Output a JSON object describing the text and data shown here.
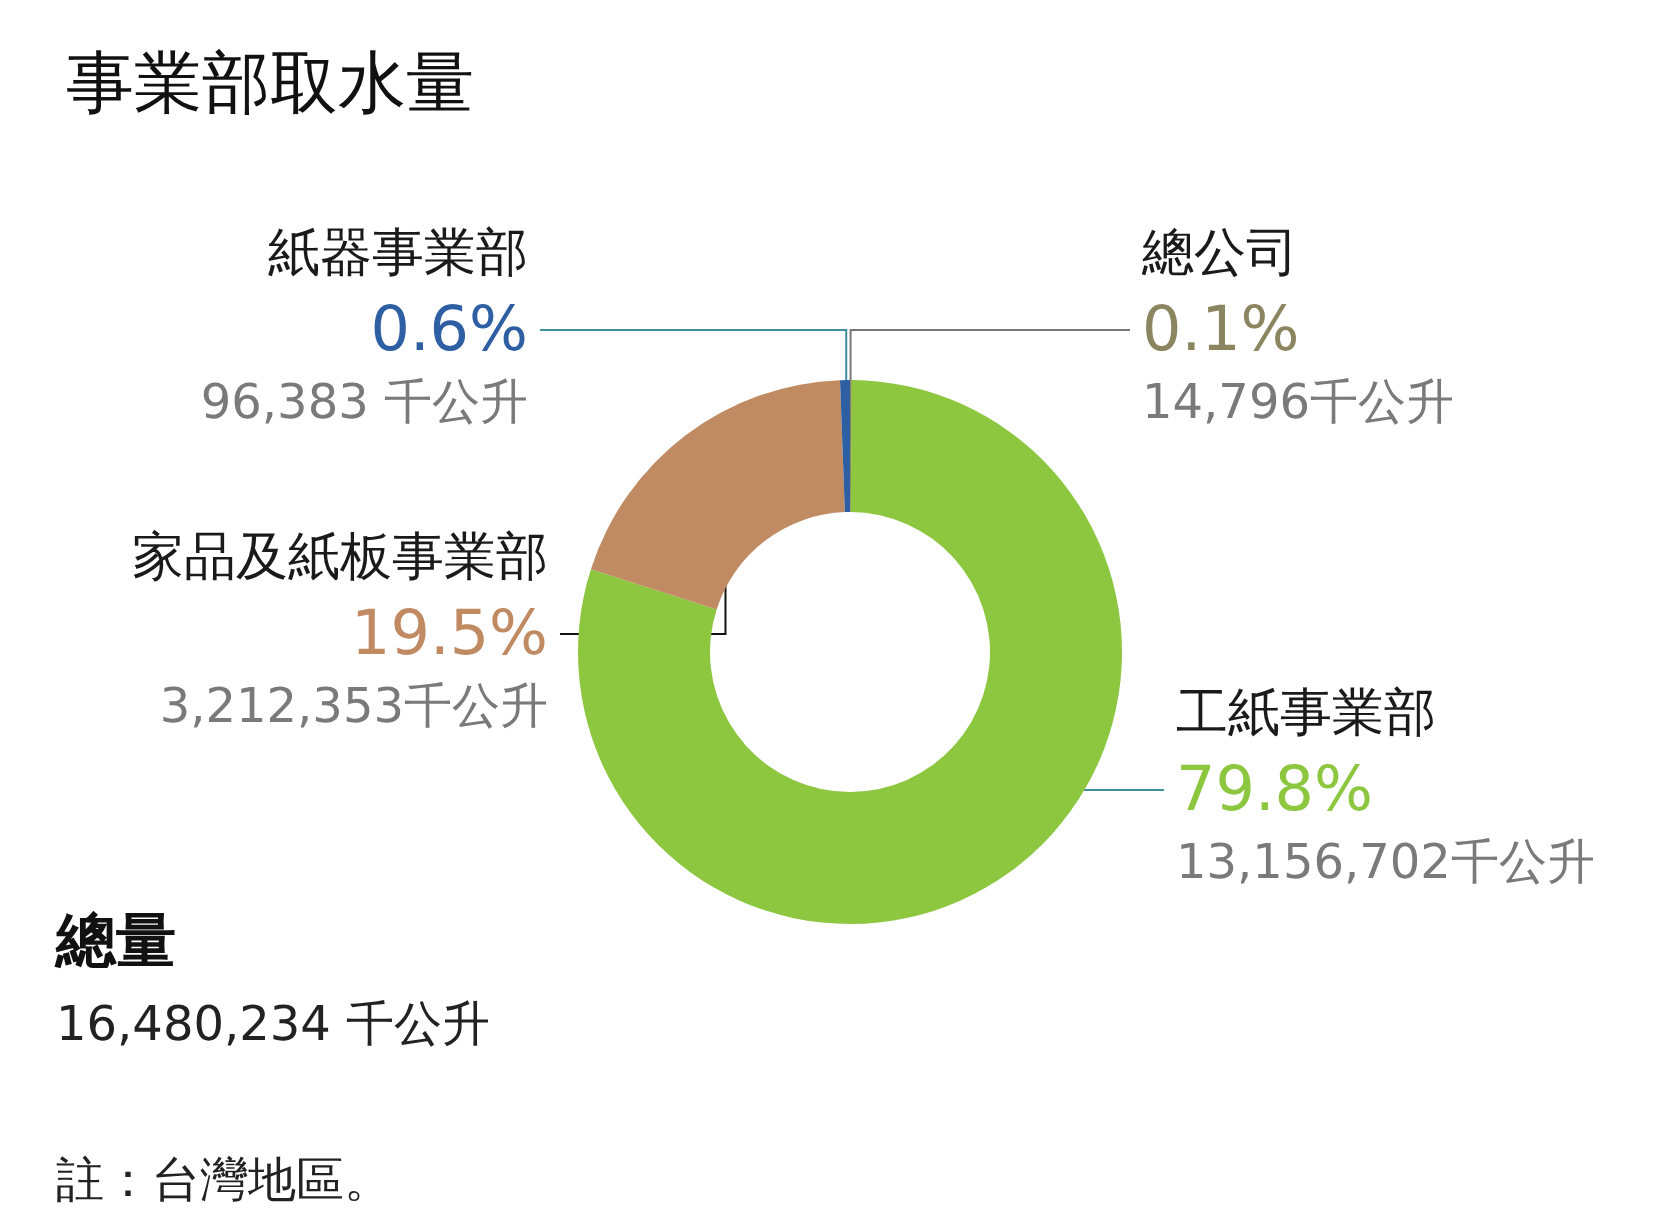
{
  "chart_data": {
    "type": "donut",
    "title": "事業部取水量",
    "categories": [
      "總公司",
      "工紙事業部",
      "家品及紙板事業部",
      "紙器事業部"
    ],
    "values": [
      14796,
      13156702,
      3212353,
      96383
    ],
    "value_labels": [
      "0.1%\n14,796千公升",
      "79.8%\n13,156,702千公升",
      "19.5%\n3,212,353千公升",
      "0.6%\n96,383 千公升"
    ],
    "colors": [
      "#8b8660",
      "#8dc63f",
      "#c08b62",
      "#2e5fa3"
    ],
    "annotations": [
      "總量",
      "16,480,234 千公升",
      "註：台灣地區。"
    ]
  }
}
